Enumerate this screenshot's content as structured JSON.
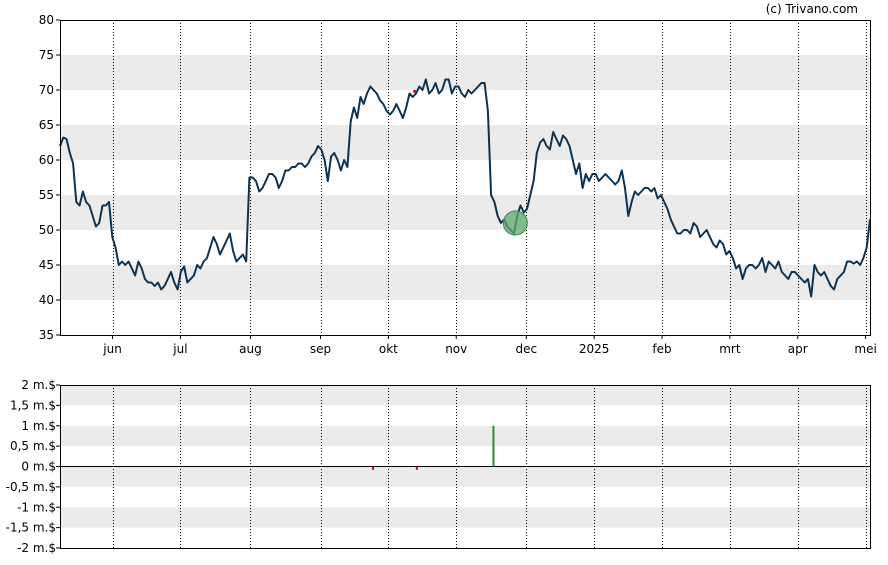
{
  "credit": "(c) Trivano.com",
  "colors": {
    "price_line": "#0d3350",
    "band": "#ebebeb",
    "grid": "#000000",
    "volume_up": "#2e8b2e",
    "volume_down": "#cc0000",
    "marker": "#5fa870",
    "dividend_marker": "#cc0000"
  },
  "chart_data": [
    {
      "type": "line",
      "name": "price-chart",
      "x_tick_labels": [
        "jun",
        "jul",
        "aug",
        "sep",
        "okt",
        "nov",
        "dec",
        "2025",
        "feb",
        "mrt",
        "apr",
        "mei"
      ],
      "x_tick_days": [
        24,
        55,
        87,
        119,
        150,
        181,
        213,
        244,
        275,
        306,
        337,
        368
      ],
      "x_range_days": [
        0,
        370
      ],
      "y_tick_labels": [
        "80",
        "75",
        "70",
        "65",
        "60",
        "55",
        "50",
        "45",
        "40",
        "35"
      ],
      "ylim": [
        35,
        80
      ],
      "grid": "vertical dotted at month ticks, alternating horizontal bands",
      "series_points": [
        [
          0,
          62
        ],
        [
          1,
          63.2
        ],
        [
          2,
          63
        ],
        [
          3,
          61
        ],
        [
          4,
          59.5
        ],
        [
          5,
          54
        ],
        [
          6,
          53.5
        ],
        [
          7,
          55.5
        ],
        [
          8,
          54
        ],
        [
          9,
          53.5
        ],
        [
          10,
          52
        ],
        [
          11,
          50.5
        ],
        [
          12,
          51
        ],
        [
          13,
          53.5
        ],
        [
          14,
          53.5
        ],
        [
          15,
          54
        ],
        [
          16,
          49
        ],
        [
          17,
          47.5
        ],
        [
          18,
          45
        ],
        [
          19,
          45.5
        ],
        [
          20,
          45
        ],
        [
          21,
          45.5
        ],
        [
          22,
          44.5
        ],
        [
          23,
          43.5
        ],
        [
          24,
          45.5
        ],
        [
          25,
          44.5
        ],
        [
          26,
          43
        ],
        [
          27,
          42.5
        ],
        [
          28,
          42.5
        ],
        [
          29,
          42
        ],
        [
          30,
          42.5
        ],
        [
          31,
          41.5
        ],
        [
          32,
          42
        ],
        [
          33,
          43
        ],
        [
          34,
          44
        ],
        [
          35,
          42.5
        ],
        [
          36,
          41.5
        ],
        [
          37,
          44
        ],
        [
          38,
          44.8
        ],
        [
          39,
          42.5
        ],
        [
          40,
          43
        ],
        [
          41,
          43.5
        ],
        [
          42,
          45
        ],
        [
          43,
          44.5
        ],
        [
          44,
          45.5
        ],
        [
          45,
          46
        ],
        [
          46,
          47.5
        ],
        [
          47,
          49
        ],
        [
          48,
          48
        ],
        [
          49,
          46.5
        ],
        [
          50,
          47.5
        ],
        [
          51,
          48.5
        ],
        [
          52,
          49.5
        ],
        [
          53,
          47
        ],
        [
          54,
          45.5
        ],
        [
          55,
          46
        ],
        [
          56,
          46.5
        ],
        [
          57,
          45.5
        ],
        [
          58,
          57.5
        ],
        [
          59,
          57.5
        ],
        [
          60,
          57
        ],
        [
          61,
          55.5
        ],
        [
          62,
          56
        ],
        [
          63,
          57
        ],
        [
          64,
          58
        ],
        [
          65,
          58
        ],
        [
          66,
          57.5
        ],
        [
          67,
          56
        ],
        [
          68,
          57
        ],
        [
          69,
          58.5
        ],
        [
          70,
          58.5
        ],
        [
          71,
          59
        ],
        [
          72,
          59
        ],
        [
          73,
          59.5
        ],
        [
          74,
          59.5
        ],
        [
          75,
          59
        ],
        [
          76,
          59.5
        ],
        [
          77,
          60.5
        ],
        [
          78,
          61
        ],
        [
          79,
          62
        ],
        [
          80,
          61.5
        ],
        [
          81,
          60
        ],
        [
          82,
          57
        ],
        [
          83,
          60.5
        ],
        [
          84,
          61
        ],
        [
          85,
          60
        ],
        [
          86,
          58.5
        ],
        [
          87,
          60
        ],
        [
          88,
          59
        ],
        [
          89,
          65.5
        ],
        [
          90,
          67.5
        ],
        [
          91,
          66
        ],
        [
          92,
          69
        ],
        [
          93,
          68
        ],
        [
          94,
          69.5
        ],
        [
          95,
          70.5
        ],
        [
          96,
          70
        ],
        [
          97,
          69.5
        ],
        [
          98,
          68.5
        ],
        [
          99,
          68
        ],
        [
          100,
          67
        ],
        [
          101,
          66.5
        ],
        [
          102,
          67
        ],
        [
          103,
          68
        ],
        [
          104,
          67
        ],
        [
          105,
          66
        ],
        [
          106,
          67.5
        ],
        [
          107,
          69.5
        ],
        [
          108,
          69
        ],
        [
          109,
          69.5
        ],
        [
          110,
          70.5
        ],
        [
          111,
          70
        ],
        [
          112,
          71.5
        ],
        [
          113,
          69.5
        ],
        [
          114,
          70
        ],
        [
          115,
          71
        ],
        [
          116,
          69.5
        ],
        [
          117,
          70
        ],
        [
          118,
          71.5
        ],
        [
          119,
          71.5
        ],
        [
          120,
          69.5
        ],
        [
          121,
          70.5
        ],
        [
          122,
          70.5
        ],
        [
          123,
          69.5
        ],
        [
          124,
          69
        ],
        [
          125,
          70
        ],
        [
          126,
          69.5
        ],
        [
          127,
          70
        ],
        [
          128,
          70.5
        ],
        [
          129,
          71
        ],
        [
          130,
          71
        ],
        [
          131,
          67
        ],
        [
          132,
          55
        ],
        [
          133,
          54
        ],
        [
          134,
          52
        ],
        [
          135,
          51
        ],
        [
          136,
          51.5
        ],
        [
          137,
          50.5
        ],
        [
          138,
          50
        ],
        [
          139,
          49.5
        ],
        [
          140,
          52
        ],
        [
          141,
          53.5
        ],
        [
          142,
          52.5
        ],
        [
          143,
          53
        ],
        [
          144,
          55
        ],
        [
          145,
          57
        ],
        [
          146,
          61
        ],
        [
          147,
          62.5
        ],
        [
          148,
          63
        ],
        [
          149,
          62
        ],
        [
          150,
          61.5
        ],
        [
          151,
          64
        ],
        [
          152,
          63
        ],
        [
          153,
          62
        ],
        [
          154,
          63.5
        ],
        [
          155,
          63
        ],
        [
          156,
          62
        ],
        [
          157,
          60
        ],
        [
          158,
          58
        ],
        [
          159,
          59.5
        ],
        [
          160,
          56
        ],
        [
          161,
          58
        ],
        [
          162,
          57
        ],
        [
          163,
          58
        ],
        [
          164,
          58
        ],
        [
          165,
          57
        ],
        [
          166,
          57.5
        ],
        [
          167,
          58
        ],
        [
          168,
          57.5
        ],
        [
          169,
          57
        ],
        [
          170,
          56.5
        ],
        [
          171,
          57
        ],
        [
          172,
          58.5
        ],
        [
          173,
          56
        ],
        [
          174,
          52
        ],
        [
          175,
          54
        ],
        [
          176,
          55.5
        ],
        [
          177,
          55
        ],
        [
          178,
          55.5
        ],
        [
          179,
          56
        ],
        [
          180,
          56
        ],
        [
          181,
          55.5
        ],
        [
          182,
          56
        ],
        [
          183,
          54.5
        ],
        [
          184,
          55
        ],
        [
          185,
          54
        ],
        [
          186,
          53
        ],
        [
          187,
          51.5
        ],
        [
          188,
          50.5
        ],
        [
          189,
          49.5
        ],
        [
          190,
          49.5
        ],
        [
          191,
          50
        ],
        [
          192,
          50
        ],
        [
          193,
          49.5
        ],
        [
          194,
          51
        ],
        [
          195,
          50.5
        ],
        [
          196,
          49
        ],
        [
          197,
          49.5
        ],
        [
          198,
          50
        ],
        [
          199,
          49
        ],
        [
          200,
          48
        ],
        [
          201,
          47.5
        ],
        [
          202,
          48.5
        ],
        [
          203,
          48
        ],
        [
          204,
          46.5
        ],
        [
          205,
          47
        ],
        [
          206,
          46
        ],
        [
          207,
          44.5
        ],
        [
          208,
          45
        ],
        [
          209,
          43
        ],
        [
          210,
          44.5
        ],
        [
          211,
          45
        ],
        [
          212,
          45
        ],
        [
          213,
          44.5
        ],
        [
          214,
          45
        ],
        [
          215,
          46
        ],
        [
          216,
          44
        ],
        [
          217,
          45.5
        ],
        [
          218,
          45
        ],
        [
          219,
          44.5
        ],
        [
          220,
          45.5
        ],
        [
          221,
          44
        ],
        [
          222,
          43.5
        ],
        [
          223,
          43
        ],
        [
          224,
          44
        ],
        [
          225,
          44
        ],
        [
          226,
          43.5
        ],
        [
          227,
          43
        ],
        [
          228,
          42.5
        ],
        [
          229,
          43
        ],
        [
          230,
          40.5
        ],
        [
          231,
          45
        ],
        [
          232,
          44
        ],
        [
          233,
          43.5
        ],
        [
          234,
          44
        ],
        [
          235,
          43
        ],
        [
          236,
          42
        ],
        [
          237,
          41.5
        ],
        [
          238,
          43
        ],
        [
          239,
          43.5
        ],
        [
          240,
          44
        ],
        [
          241,
          45.5
        ],
        [
          242,
          45.5
        ],
        [
          243,
          45.2
        ],
        [
          244,
          45.5
        ],
        [
          245,
          45
        ],
        [
          246,
          46
        ],
        [
          247,
          47.5
        ],
        [
          248,
          51.5
        ]
      ],
      "series_x_scale": 1.4919,
      "markers": [
        {
          "kind": "green-circle",
          "day": 208,
          "value": 51
        },
        {
          "kind": "red-dot",
          "day": 162,
          "value": 69.8
        }
      ]
    },
    {
      "type": "bar",
      "name": "volume-chart",
      "y_tick_labels": [
        "2 m.$",
        "1,5 m.$",
        "1 m.$",
        "0,5 m.$",
        "0 m.$",
        "-0,5 m.$",
        "-1 m.$",
        "-1,5 m.$",
        "-2 m.$"
      ],
      "ylim": [
        -2,
        2
      ],
      "bars": [
        {
          "day": 143,
          "value": -0.08
        },
        {
          "day": 163,
          "value": -0.08
        },
        {
          "day": 198,
          "value": 1.0
        }
      ]
    }
  ]
}
